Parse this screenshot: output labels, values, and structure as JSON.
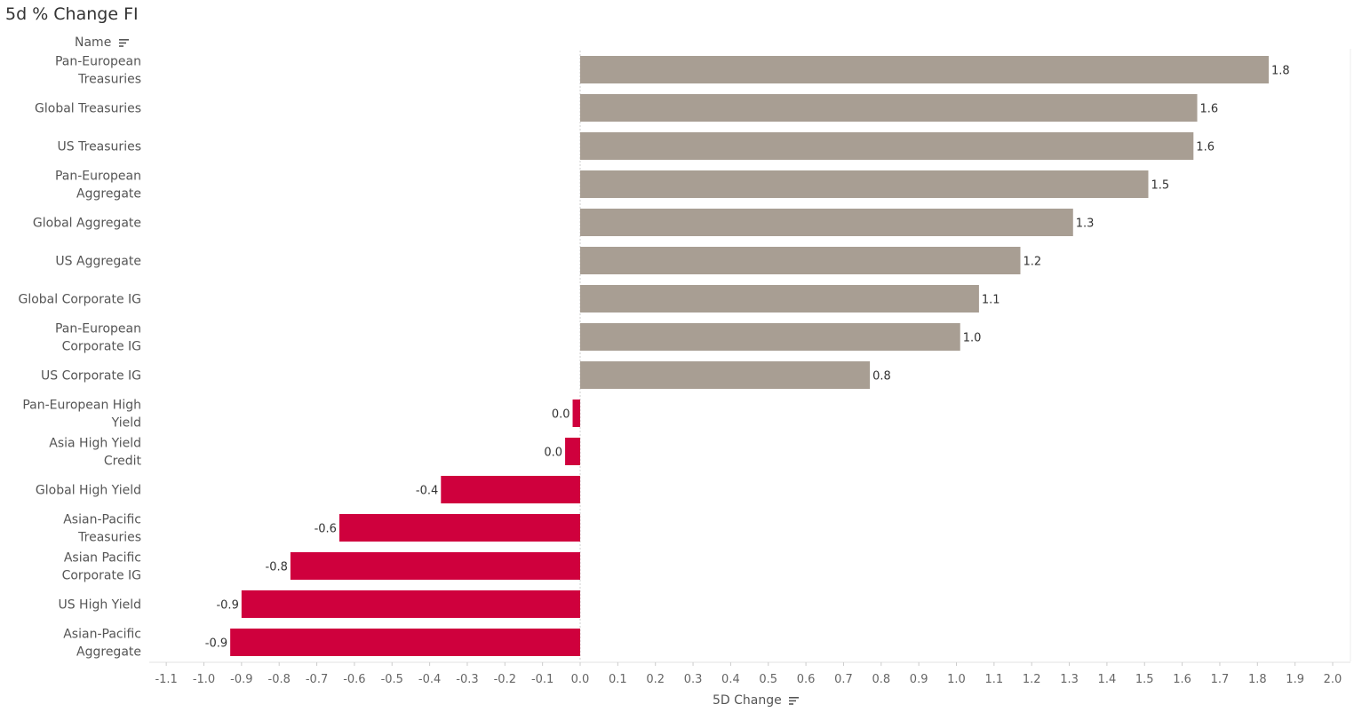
{
  "chart_data": {
    "type": "bar",
    "orientation": "horizontal",
    "title": "5d % Change FI",
    "row_header": "Name",
    "xlabel": "5D Change",
    "xlim": [
      -1.15,
      2.05
    ],
    "xticks": [
      -1.1,
      -1.0,
      -0.9,
      -0.8,
      -0.7,
      -0.6,
      -0.5,
      -0.4,
      -0.3,
      -0.2,
      -0.1,
      0.0,
      0.1,
      0.2,
      0.3,
      0.4,
      0.5,
      0.6,
      0.7,
      0.8,
      0.9,
      1.0,
      1.1,
      1.2,
      1.3,
      1.4,
      1.5,
      1.6,
      1.7,
      1.8,
      1.9,
      2.0
    ],
    "xtick_labels": [
      "-1.1",
      "-1.0",
      "-0.9",
      "-0.8",
      "-0.7",
      "-0.6",
      "-0.5",
      "-0.4",
      "-0.3",
      "-0.2",
      "-0.1",
      "0.0",
      "0.1",
      "0.2",
      "0.3",
      "0.4",
      "0.5",
      "0.6",
      "0.7",
      "0.8",
      "0.9",
      "1.0",
      "1.1",
      "1.2",
      "1.3",
      "1.4",
      "1.5",
      "1.6",
      "1.7",
      "1.8",
      "1.9",
      "2.0"
    ],
    "categories": [
      [
        "Pan-European",
        "Treasuries"
      ],
      [
        "Global Treasuries"
      ],
      [
        "US Treasuries"
      ],
      [
        "Pan-European",
        "Aggregate"
      ],
      [
        "Global Aggregate"
      ],
      [
        "US Aggregate"
      ],
      [
        "Global Corporate IG"
      ],
      [
        "Pan-European",
        "Corporate IG"
      ],
      [
        "US Corporate IG"
      ],
      [
        "Pan-European High",
        "Yield"
      ],
      [
        "Asia High Yield",
        "Credit"
      ],
      [
        "Global High Yield"
      ],
      [
        "Asian-Pacific",
        "Treasuries"
      ],
      [
        "Asian Pacific",
        "Corporate IG"
      ],
      [
        "US High Yield"
      ],
      [
        "Asian-Pacific",
        "Aggregate"
      ]
    ],
    "values": [
      1.83,
      1.64,
      1.63,
      1.51,
      1.31,
      1.17,
      1.06,
      1.01,
      0.77,
      -0.02,
      -0.04,
      -0.37,
      -0.64,
      -0.77,
      -0.9,
      -0.93
    ],
    "data_labels": [
      "1.8",
      "1.6",
      "1.6",
      "1.5",
      "1.3",
      "1.2",
      "1.1",
      "1.0",
      "0.8",
      "0.0",
      "0.0",
      "-0.4",
      "-0.6",
      "-0.8",
      "-0.9",
      "-0.9"
    ],
    "colors": {
      "positive": "#a89e93",
      "negative": "#cf003d"
    },
    "grid": false,
    "legend": "none"
  }
}
